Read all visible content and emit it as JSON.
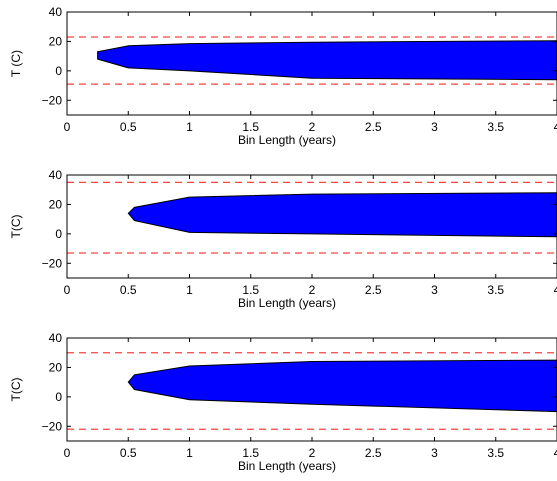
{
  "chart_data": [
    {
      "type": "area",
      "xlabel": "Bin Length (years)",
      "ylabel": "T (C)",
      "xlim": [
        0,
        4
      ],
      "ylim": [
        -30,
        40
      ],
      "xticks": [
        "0",
        "0.5",
        "1",
        "1.5",
        "2",
        "2.5",
        "3",
        "3.5",
        "4"
      ],
      "yticks": [
        "−20",
        "0",
        "20",
        "40"
      ],
      "band": {
        "x": [
          0.25,
          0.5,
          1,
          2,
          4
        ],
        "upper": [
          13,
          17,
          18.5,
          19.5,
          20.5
        ],
        "lower": [
          8,
          2,
          0,
          -5,
          -6
        ]
      },
      "hlines": [
        23,
        -9
      ],
      "colors": {
        "band": "#0000ff",
        "hline": "#ff4040"
      }
    },
    {
      "type": "area",
      "xlabel": "Bin Length (years)",
      "ylabel": "T(C)",
      "xlim": [
        0,
        4
      ],
      "ylim": [
        -30,
        40
      ],
      "xticks": [
        "0",
        "0.5",
        "1",
        "1.5",
        "2",
        "2.5",
        "3",
        "3.5",
        "4"
      ],
      "yticks": [
        "−20",
        "0",
        "20",
        "40"
      ],
      "band": {
        "x": [
          0.5,
          0.55,
          1,
          2,
          4
        ],
        "upper": [
          14,
          18,
          25,
          27,
          28
        ],
        "lower": [
          14,
          9,
          1,
          0,
          -2
        ]
      },
      "hlines": [
        35,
        -13
      ],
      "colors": {
        "band": "#0000ff",
        "hline": "#ff4040"
      }
    },
    {
      "type": "area",
      "xlabel": "Bin Length (years)",
      "ylabel": "T(C)",
      "xlim": [
        0,
        4
      ],
      "ylim": [
        -30,
        40
      ],
      "xticks": [
        "0",
        "0.5",
        "1",
        "1.5",
        "2",
        "2.5",
        "3",
        "3.5",
        "4"
      ],
      "yticks": [
        "−20",
        "0",
        "20",
        "40"
      ],
      "band": {
        "x": [
          0.5,
          0.55,
          1,
          2,
          4
        ],
        "upper": [
          10,
          15,
          21,
          24,
          25
        ],
        "lower": [
          10,
          5,
          -2,
          -5,
          -10
        ]
      },
      "hlines": [
        30,
        -22
      ],
      "colors": {
        "band": "#0000ff",
        "hline": "#ff4040"
      }
    }
  ]
}
